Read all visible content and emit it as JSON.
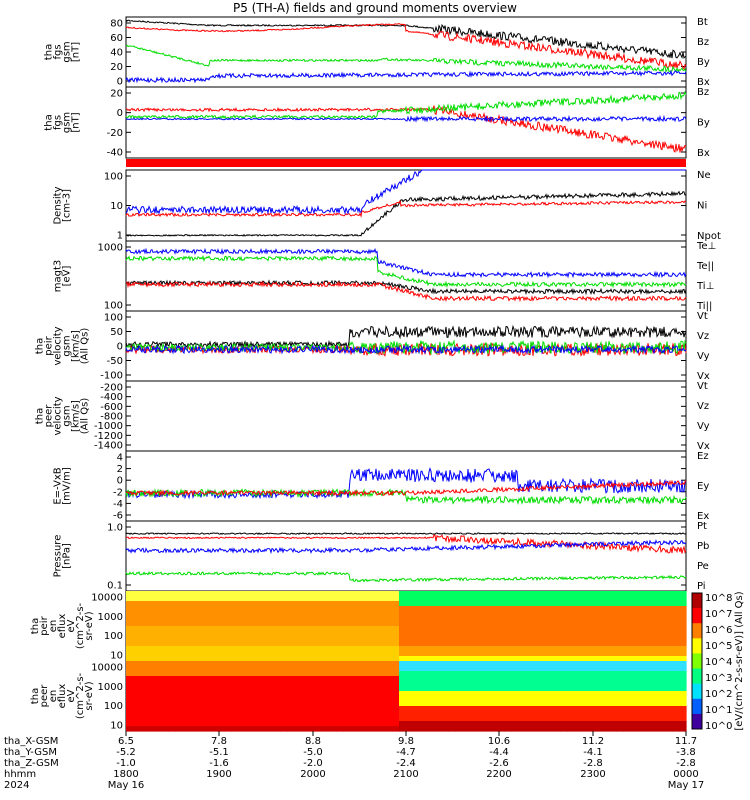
{
  "title": "P5 (TH-A) fields and ground moments overview",
  "colors": {
    "black": "#000000",
    "red": "#ff0000",
    "green": "#00dd00",
    "blue": "#0000ff"
  },
  "chart_data": [
    {
      "id": "p1",
      "type": "line",
      "ylabel": [
        "tha",
        "fgs",
        "gsm",
        "[nT]"
      ],
      "yticks": [
        "80",
        "60",
        "40",
        "20",
        "0"
      ],
      "legend": [
        {
          "name": "Bt",
          "color": "#000000"
        },
        {
          "name": "Bz",
          "color": "#ff0000"
        },
        {
          "name": "By",
          "color": "#00dd00"
        },
        {
          "name": "Bx",
          "color": "#0000ff"
        }
      ]
    },
    {
      "id": "p2",
      "type": "line",
      "ylabel": [
        "tha",
        "fgs",
        "gsm",
        "[nT]"
      ],
      "yticks": [
        "20",
        "0",
        "-20",
        "-40"
      ],
      "legend": [
        {
          "name": "Bz",
          "color": "#ff0000"
        },
        {
          "name": "By",
          "color": "#00dd00"
        },
        {
          "name": "Bx",
          "color": "#0000ff"
        }
      ]
    },
    {
      "id": "p3",
      "type": "line",
      "ylabel": [
        "Density",
        "[cm-3]"
      ],
      "yticks": [
        "100",
        "10",
        "1"
      ],
      "legend": [
        {
          "name": "Ne",
          "color": "#ff0000"
        },
        {
          "name": "Ni",
          "color": "#000000"
        },
        {
          "name": "Npot",
          "color": "#0000ff"
        }
      ]
    },
    {
      "id": "p4",
      "type": "line",
      "ylabel": [
        "magt3",
        "[eV]"
      ],
      "yticks": [
        "1000",
        "100"
      ],
      "legend": [
        {
          "name": "Te⊥",
          "color": "#ff0000"
        },
        {
          "name": "Te||",
          "color": "#000000"
        },
        {
          "name": "Ti⊥",
          "color": "#0000ff"
        },
        {
          "name": "Ti||",
          "color": "#00dd00"
        }
      ]
    },
    {
      "id": "p5",
      "type": "line",
      "ylabel": [
        "tha",
        "peir",
        "velocity",
        "gsm",
        "[km/s]",
        "(All Qs)"
      ],
      "yticks": [
        "100",
        "50",
        "0",
        "-50",
        "-100"
      ],
      "legend": [
        {
          "name": "Vt",
          "color": "#000000"
        },
        {
          "name": "Vz",
          "color": "#ff0000"
        },
        {
          "name": "Vy",
          "color": "#00dd00"
        },
        {
          "name": "Vx",
          "color": "#0000ff"
        }
      ]
    },
    {
      "id": "p6",
      "type": "line",
      "ylabel": [
        "tha",
        "peer",
        "velocity",
        "gsm",
        "[km/s]",
        "(All Qs)"
      ],
      "yticks": [
        "-200",
        "-400",
        "-600",
        "-800",
        "-1000",
        "-1200",
        "-1400"
      ],
      "legend": [
        {
          "name": "Vt",
          "color": "#000000"
        },
        {
          "name": "Vz",
          "color": "#ff0000"
        },
        {
          "name": "Vy",
          "color": "#00dd00"
        },
        {
          "name": "Vx",
          "color": "#0000ff"
        }
      ]
    },
    {
      "id": "p7",
      "type": "line",
      "ylabel": [
        "E=-VxB",
        "[mV/m]"
      ],
      "yticks": [
        "4",
        "2",
        "0",
        "-2",
        "-4",
        "-6"
      ],
      "legend": [
        {
          "name": "Ez",
          "color": "#ff0000"
        },
        {
          "name": "Ey",
          "color": "#00dd00"
        },
        {
          "name": "Ex",
          "color": "#0000ff"
        }
      ]
    },
    {
      "id": "p8",
      "type": "line",
      "ylabel": [
        "Pressure",
        "[nPa]"
      ],
      "yticks": [
        "1.0",
        "0.1"
      ],
      "legend": [
        {
          "name": "Pt",
          "color": "#000000"
        },
        {
          "name": "Pb",
          "color": "#ff0000"
        },
        {
          "name": "Pe",
          "color": "#00dd00"
        },
        {
          "name": "Pi",
          "color": "#0000ff"
        }
      ]
    },
    {
      "id": "p9",
      "type": "heatmap",
      "ylabel": [
        "tha",
        "peir",
        "en",
        "eflux",
        "eV",
        "(cm^2-s-",
        "sr-eV)"
      ],
      "yticks": [
        "10000",
        "1000",
        "100",
        "10"
      ]
    },
    {
      "id": "p10",
      "type": "heatmap",
      "ylabel": [
        "tha",
        "peer",
        "en",
        "eflux",
        "eV",
        "(cm^2-s-",
        "sr-eV)"
      ],
      "yticks": [
        "10000",
        "1000",
        "100",
        "10"
      ]
    }
  ],
  "colorbar": {
    "label": "[eV/(cm^2-s-sr-eV)] (All Qs)",
    "ticks": [
      "10^8",
      "10^7",
      "10^6",
      "10^5",
      "10^4",
      "10^3",
      "10^2",
      "10^1",
      "10^0"
    ]
  },
  "x_axis": {
    "rows": [
      {
        "label": "tha_X-GSM",
        "values": [
          "6.5",
          "7.8",
          "8.8",
          "9.8",
          "10.6",
          "11.2",
          "11.7"
        ]
      },
      {
        "label": "tha_Y-GSM",
        "values": [
          "-5.2",
          "-5.1",
          "-5.0",
          "-4.7",
          "-4.4",
          "-4.1",
          "-3.8"
        ]
      },
      {
        "label": "tha_Z-GSM",
        "values": [
          "-1.0",
          "-1.6",
          "-2.0",
          "-2.4",
          "-2.6",
          "-2.8",
          "-2.8"
        ]
      },
      {
        "label": "hhmm",
        "values": [
          "1800",
          "1900",
          "2000",
          "2100",
          "2200",
          "2300",
          "0000"
        ]
      },
      {
        "label": "2024",
        "values": [
          "May 16",
          "",
          "",
          "",
          "",
          "",
          "May 17"
        ]
      }
    ]
  }
}
